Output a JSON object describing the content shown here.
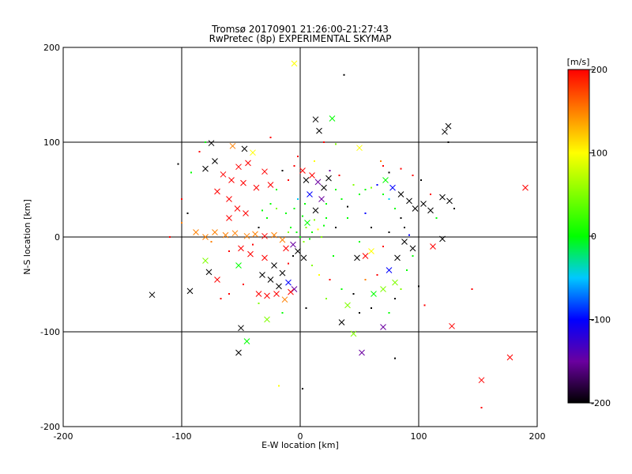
{
  "chart_data": {
    "type": "scatter",
    "title": "Tromsø 20170901 21:26:00-21:27:43",
    "subtitle": "RwPretec (8p) EXPERIMENTAL SKYMAP",
    "xlabel": "E-W location [km]",
    "ylabel": "N-S location [km]",
    "xlim": [
      -200,
      200
    ],
    "ylim": [
      -200,
      200
    ],
    "x_ticks": [
      "-200",
      "-100",
      "0",
      "100",
      "200"
    ],
    "y_ticks": [
      "-200",
      "-100",
      "0",
      "100",
      "200"
    ],
    "grid": true,
    "colorbar": {
      "label": "[m/s]",
      "min": -200,
      "max": 200,
      "ticks": [
        "200",
        "100",
        "0",
        "-100",
        "-200"
      ]
    },
    "markers": [
      "x",
      "dot"
    ],
    "points": [
      {
        "x": 37,
        "y": 171,
        "v": -200,
        "m": "dot"
      },
      {
        "x": -5,
        "y": 183,
        "v": 100,
        "m": "x"
      },
      {
        "x": 13,
        "y": 124,
        "v": -200,
        "m": "x"
      },
      {
        "x": 27,
        "y": 125,
        "v": 0,
        "m": "x"
      },
      {
        "x": 16,
        "y": 112,
        "v": -200,
        "m": "x"
      },
      {
        "x": 125,
        "y": 117,
        "v": -200,
        "m": "x"
      },
      {
        "x": 122,
        "y": 111,
        "v": -200,
        "m": "x"
      },
      {
        "x": -75,
        "y": 99,
        "v": -200,
        "m": "x"
      },
      {
        "x": -57,
        "y": 96,
        "v": 150,
        "m": "x"
      },
      {
        "x": -47,
        "y": 93,
        "v": -200,
        "m": "x"
      },
      {
        "x": -40,
        "y": 89,
        "v": 100,
        "m": "x"
      },
      {
        "x": 50,
        "y": 94,
        "v": 100,
        "m": "x"
      },
      {
        "x": 190,
        "y": 52,
        "v": 200,
        "m": "x"
      },
      {
        "x": -80,
        "y": 72,
        "v": -200,
        "m": "x"
      },
      {
        "x": -72,
        "y": 80,
        "v": -200,
        "m": "x"
      },
      {
        "x": -65,
        "y": 66,
        "v": 200,
        "m": "x"
      },
      {
        "x": -58,
        "y": 60,
        "v": 200,
        "m": "x"
      },
      {
        "x": -52,
        "y": 74,
        "v": 200,
        "m": "x"
      },
      {
        "x": -48,
        "y": 57,
        "v": 200,
        "m": "x"
      },
      {
        "x": -44,
        "y": 78,
        "v": 200,
        "m": "x"
      },
      {
        "x": -37,
        "y": 52,
        "v": 200,
        "m": "x"
      },
      {
        "x": -30,
        "y": 69,
        "v": 200,
        "m": "x"
      },
      {
        "x": -25,
        "y": 55,
        "v": 200,
        "m": "x"
      },
      {
        "x": -70,
        "y": 48,
        "v": 200,
        "m": "x"
      },
      {
        "x": -60,
        "y": 40,
        "v": 200,
        "m": "x"
      },
      {
        "x": -53,
        "y": 30,
        "v": 200,
        "m": "x"
      },
      {
        "x": -46,
        "y": 25,
        "v": 200,
        "m": "x"
      },
      {
        "x": -60,
        "y": 20,
        "v": 200,
        "m": "x"
      },
      {
        "x": -88,
        "y": 5,
        "v": 150,
        "m": "x"
      },
      {
        "x": -80,
        "y": 0,
        "v": 150,
        "m": "x"
      },
      {
        "x": -72,
        "y": 5,
        "v": 150,
        "m": "x"
      },
      {
        "x": -63,
        "y": 2,
        "v": 150,
        "m": "x"
      },
      {
        "x": -55,
        "y": 4,
        "v": 150,
        "m": "x"
      },
      {
        "x": -45,
        "y": 1,
        "v": 150,
        "m": "x"
      },
      {
        "x": -38,
        "y": 3,
        "v": 150,
        "m": "x"
      },
      {
        "x": -30,
        "y": 1,
        "v": 200,
        "m": "x"
      },
      {
        "x": -22,
        "y": 2,
        "v": 150,
        "m": "x"
      },
      {
        "x": -15,
        "y": -3,
        "v": 150,
        "m": "x"
      },
      {
        "x": -50,
        "y": -12,
        "v": 200,
        "m": "x"
      },
      {
        "x": -42,
        "y": -18,
        "v": 200,
        "m": "x"
      },
      {
        "x": -30,
        "y": -22,
        "v": 200,
        "m": "x"
      },
      {
        "x": -22,
        "y": -30,
        "v": -200,
        "m": "x"
      },
      {
        "x": -15,
        "y": -38,
        "v": -200,
        "m": "x"
      },
      {
        "x": -25,
        "y": -45,
        "v": -200,
        "m": "x"
      },
      {
        "x": -18,
        "y": -52,
        "v": -200,
        "m": "x"
      },
      {
        "x": -10,
        "y": -48,
        "v": -100,
        "m": "x"
      },
      {
        "x": -5,
        "y": -55,
        "v": -150,
        "m": "x"
      },
      {
        "x": -35,
        "y": -60,
        "v": 200,
        "m": "x"
      },
      {
        "x": -28,
        "y": -62,
        "v": 200,
        "m": "x"
      },
      {
        "x": -20,
        "y": -60,
        "v": 200,
        "m": "x"
      },
      {
        "x": -13,
        "y": -66,
        "v": 150,
        "m": "x"
      },
      {
        "x": -8,
        "y": -58,
        "v": 200,
        "m": "x"
      },
      {
        "x": -2,
        "y": -15,
        "v": -200,
        "m": "x"
      },
      {
        "x": 3,
        "y": -22,
        "v": -200,
        "m": "x"
      },
      {
        "x": -6,
        "y": -8,
        "v": -150,
        "m": "x"
      },
      {
        "x": -12,
        "y": -12,
        "v": 200,
        "m": "x"
      },
      {
        "x": 5,
        "y": 60,
        "v": -200,
        "m": "x"
      },
      {
        "x": 10,
        "y": 65,
        "v": 200,
        "m": "x"
      },
      {
        "x": 15,
        "y": 58,
        "v": -150,
        "m": "x"
      },
      {
        "x": 20,
        "y": 52,
        "v": -200,
        "m": "x"
      },
      {
        "x": 8,
        "y": 45,
        "v": -100,
        "m": "x"
      },
      {
        "x": 2,
        "y": 70,
        "v": 200,
        "m": "x"
      },
      {
        "x": 18,
        "y": 40,
        "v": -150,
        "m": "x"
      },
      {
        "x": 13,
        "y": 28,
        "v": -200,
        "m": "x"
      },
      {
        "x": 6,
        "y": 15,
        "v": 0,
        "m": "x"
      },
      {
        "x": 24,
        "y": 62,
        "v": -200,
        "m": "x"
      },
      {
        "x": 72,
        "y": 60,
        "v": 0,
        "m": "x"
      },
      {
        "x": 78,
        "y": 52,
        "v": -100,
        "m": "x"
      },
      {
        "x": 85,
        "y": 45,
        "v": -200,
        "m": "x"
      },
      {
        "x": 92,
        "y": 38,
        "v": -200,
        "m": "x"
      },
      {
        "x": 97,
        "y": 30,
        "v": -200,
        "m": "x"
      },
      {
        "x": 104,
        "y": 35,
        "v": -200,
        "m": "x"
      },
      {
        "x": 110,
        "y": 28,
        "v": -200,
        "m": "x"
      },
      {
        "x": 120,
        "y": 42,
        "v": -200,
        "m": "x"
      },
      {
        "x": 126,
        "y": 38,
        "v": -200,
        "m": "x"
      },
      {
        "x": 88,
        "y": -5,
        "v": -200,
        "m": "x"
      },
      {
        "x": 95,
        "y": -12,
        "v": -200,
        "m": "x"
      },
      {
        "x": 82,
        "y": -22,
        "v": -200,
        "m": "x"
      },
      {
        "x": 75,
        "y": -35,
        "v": -100,
        "m": "x"
      },
      {
        "x": 80,
        "y": -48,
        "v": 50,
        "m": "x"
      },
      {
        "x": 70,
        "y": -55,
        "v": 50,
        "m": "x"
      },
      {
        "x": 62,
        "y": -60,
        "v": 0,
        "m": "x"
      },
      {
        "x": 55,
        "y": -20,
        "v": 200,
        "m": "x"
      },
      {
        "x": 48,
        "y": -22,
        "v": -200,
        "m": "x"
      },
      {
        "x": 60,
        "y": -15,
        "v": 100,
        "m": "x"
      },
      {
        "x": 40,
        "y": -72,
        "v": 50,
        "m": "x"
      },
      {
        "x": 35,
        "y": -90,
        "v": -200,
        "m": "x"
      },
      {
        "x": 45,
        "y": -102,
        "v": 50,
        "m": "x"
      },
      {
        "x": 70,
        "y": -95,
        "v": -150,
        "m": "x"
      },
      {
        "x": 52,
        "y": -122,
        "v": -150,
        "m": "x"
      },
      {
        "x": 128,
        "y": -94,
        "v": 200,
        "m": "x"
      },
      {
        "x": 120,
        "y": -2,
        "v": -200,
        "m": "x"
      },
      {
        "x": 112,
        "y": -10,
        "v": 200,
        "m": "x"
      },
      {
        "x": -125,
        "y": -61,
        "v": -200,
        "m": "x"
      },
      {
        "x": -93,
        "y": -57,
        "v": -200,
        "m": "x"
      },
      {
        "x": -50,
        "y": -96,
        "v": -200,
        "m": "x"
      },
      {
        "x": -45,
        "y": -110,
        "v": 0,
        "m": "x"
      },
      {
        "x": -52,
        "y": -122,
        "v": -200,
        "m": "x"
      },
      {
        "x": -28,
        "y": -87,
        "v": 50,
        "m": "x"
      },
      {
        "x": -80,
        "y": -25,
        "v": 50,
        "m": "x"
      },
      {
        "x": -77,
        "y": -37,
        "v": -200,
        "m": "x"
      },
      {
        "x": -70,
        "y": -45,
        "v": 200,
        "m": "x"
      },
      {
        "x": -52,
        "y": -30,
        "v": 0,
        "m": "x"
      },
      {
        "x": -32,
        "y": -40,
        "v": -200,
        "m": "x"
      },
      {
        "x": 177,
        "y": -127,
        "v": 200,
        "m": "x"
      },
      {
        "x": 153,
        "y": -151,
        "v": 200,
        "m": "x"
      },
      {
        "x": 153,
        "y": -180,
        "v": 200,
        "m": "dot"
      },
      {
        "x": 2,
        "y": -160,
        "v": -200,
        "m": "dot"
      },
      {
        "x": -18,
        "y": -157,
        "v": 100,
        "m": "dot"
      },
      {
        "x": -100,
        "y": 40,
        "v": 200,
        "m": "dot"
      },
      {
        "x": -95,
        "y": 25,
        "v": -200,
        "m": "dot"
      },
      {
        "x": -92,
        "y": 68,
        "v": 0,
        "m": "dot"
      },
      {
        "x": -85,
        "y": 90,
        "v": 200,
        "m": "dot"
      },
      {
        "x": -67,
        "y": -65,
        "v": 200,
        "m": "dot"
      },
      {
        "x": -60,
        "y": -60,
        "v": 200,
        "m": "dot"
      },
      {
        "x": -48,
        "y": -50,
        "v": 200,
        "m": "dot"
      },
      {
        "x": -40,
        "y": -8,
        "v": 200,
        "m": "dot"
      },
      {
        "x": -35,
        "y": 10,
        "v": -200,
        "m": "dot"
      },
      {
        "x": -28,
        "y": 20,
        "v": 0,
        "m": "dot"
      },
      {
        "x": -20,
        "y": 30,
        "v": 50,
        "m": "dot"
      },
      {
        "x": -12,
        "y": 25,
        "v": 0,
        "m": "dot"
      },
      {
        "x": -8,
        "y": 10,
        "v": 0,
        "m": "dot"
      },
      {
        "x": -3,
        "y": 5,
        "v": 0,
        "m": "dot"
      },
      {
        "x": 0,
        "y": 0,
        "v": 0,
        "m": "dot"
      },
      {
        "x": 3,
        "y": -5,
        "v": 50,
        "m": "dot"
      },
      {
        "x": 5,
        "y": 10,
        "v": 50,
        "m": "dot"
      },
      {
        "x": 8,
        "y": -2,
        "v": 0,
        "m": "dot"
      },
      {
        "x": 10,
        "y": 5,
        "v": 0,
        "m": "dot"
      },
      {
        "x": 12,
        "y": 18,
        "v": 50,
        "m": "dot"
      },
      {
        "x": 15,
        "y": 8,
        "v": 100,
        "m": "dot"
      },
      {
        "x": 18,
        "y": 0,
        "v": 50,
        "m": "dot"
      },
      {
        "x": 20,
        "y": 12,
        "v": 0,
        "m": "dot"
      },
      {
        "x": 22,
        "y": 20,
        "v": 0,
        "m": "dot"
      },
      {
        "x": -5,
        "y": 30,
        "v": 0,
        "m": "dot"
      },
      {
        "x": -2,
        "y": 40,
        "v": -50,
        "m": "dot"
      },
      {
        "x": 4,
        "y": 35,
        "v": 0,
        "m": "dot"
      },
      {
        "x": 2,
        "y": 22,
        "v": 0,
        "m": "dot"
      },
      {
        "x": -10,
        "y": 5,
        "v": 50,
        "m": "dot"
      },
      {
        "x": -6,
        "y": -20,
        "v": -200,
        "m": "dot"
      },
      {
        "x": -10,
        "y": -28,
        "v": 200,
        "m": "dot"
      },
      {
        "x": 10,
        "y": -30,
        "v": 50,
        "m": "dot"
      },
      {
        "x": 16,
        "y": -40,
        "v": 100,
        "m": "dot"
      },
      {
        "x": 25,
        "y": -45,
        "v": 200,
        "m": "dot"
      },
      {
        "x": 28,
        "y": -20,
        "v": 0,
        "m": "dot"
      },
      {
        "x": 30,
        "y": 50,
        "v": 0,
        "m": "dot"
      },
      {
        "x": 35,
        "y": 40,
        "v": 0,
        "m": "dot"
      },
      {
        "x": 40,
        "y": 32,
        "v": -200,
        "m": "dot"
      },
      {
        "x": 45,
        "y": 55,
        "v": 50,
        "m": "dot"
      },
      {
        "x": 50,
        "y": 45,
        "v": 0,
        "m": "dot"
      },
      {
        "x": 55,
        "y": 50,
        "v": 0,
        "m": "dot"
      },
      {
        "x": 60,
        "y": 52,
        "v": 50,
        "m": "dot"
      },
      {
        "x": 65,
        "y": 55,
        "v": -100,
        "m": "dot"
      },
      {
        "x": 70,
        "y": 45,
        "v": 0,
        "m": "dot"
      },
      {
        "x": 75,
        "y": 40,
        "v": -50,
        "m": "dot"
      },
      {
        "x": 80,
        "y": 30,
        "v": 0,
        "m": "dot"
      },
      {
        "x": 85,
        "y": 20,
        "v": -200,
        "m": "dot"
      },
      {
        "x": 88,
        "y": 10,
        "v": -200,
        "m": "dot"
      },
      {
        "x": 92,
        "y": 2,
        "v": -100,
        "m": "dot"
      },
      {
        "x": 95,
        "y": -20,
        "v": 0,
        "m": "dot"
      },
      {
        "x": 90,
        "y": -35,
        "v": 0,
        "m": "dot"
      },
      {
        "x": 85,
        "y": -55,
        "v": 50,
        "m": "dot"
      },
      {
        "x": 80,
        "y": -65,
        "v": -200,
        "m": "dot"
      },
      {
        "x": 65,
        "y": -40,
        "v": 200,
        "m": "dot"
      },
      {
        "x": 55,
        "y": -45,
        "v": 150,
        "m": "dot"
      },
      {
        "x": 45,
        "y": -60,
        "v": -200,
        "m": "dot"
      },
      {
        "x": 50,
        "y": -80,
        "v": -200,
        "m": "dot"
      },
      {
        "x": 60,
        "y": -75,
        "v": -200,
        "m": "dot"
      },
      {
        "x": 75,
        "y": -80,
        "v": 0,
        "m": "dot"
      },
      {
        "x": 80,
        "y": -128,
        "v": -200,
        "m": "dot"
      },
      {
        "x": 105,
        "y": -72,
        "v": 200,
        "m": "dot"
      },
      {
        "x": 100,
        "y": -52,
        "v": -200,
        "m": "dot"
      },
      {
        "x": 110,
        "y": 45,
        "v": 200,
        "m": "dot"
      },
      {
        "x": 115,
        "y": 20,
        "v": 0,
        "m": "dot"
      },
      {
        "x": 130,
        "y": 30,
        "v": -200,
        "m": "dot"
      },
      {
        "x": 70,
        "y": 75,
        "v": 200,
        "m": "dot"
      },
      {
        "x": 75,
        "y": 68,
        "v": -200,
        "m": "dot"
      },
      {
        "x": 85,
        "y": 72,
        "v": 200,
        "m": "dot"
      },
      {
        "x": 95,
        "y": 65,
        "v": 200,
        "m": "dot"
      },
      {
        "x": 102,
        "y": 60,
        "v": -200,
        "m": "dot"
      },
      {
        "x": 20,
        "y": 100,
        "v": 200,
        "m": "dot"
      },
      {
        "x": 30,
        "y": 98,
        "v": 50,
        "m": "dot"
      },
      {
        "x": -25,
        "y": 105,
        "v": 200,
        "m": "dot"
      },
      {
        "x": -80,
        "y": 100,
        "v": 0,
        "m": "dot"
      },
      {
        "x": 68,
        "y": 80,
        "v": 150,
        "m": "dot"
      },
      {
        "x": -60,
        "y": -15,
        "v": 200,
        "m": "dot"
      },
      {
        "x": -75,
        "y": -5,
        "v": 150,
        "m": "dot"
      },
      {
        "x": -100,
        "y": 15,
        "v": 150,
        "m": "dot"
      },
      {
        "x": -110,
        "y": 0,
        "v": 200,
        "m": "dot"
      },
      {
        "x": -35,
        "y": -70,
        "v": 50,
        "m": "dot"
      },
      {
        "x": -15,
        "y": -80,
        "v": 0,
        "m": "dot"
      },
      {
        "x": 5,
        "y": -75,
        "v": -200,
        "m": "dot"
      },
      {
        "x": 22,
        "y": -65,
        "v": 50,
        "m": "dot"
      },
      {
        "x": 35,
        "y": -55,
        "v": 0,
        "m": "dot"
      },
      {
        "x": 30,
        "y": 10,
        "v": -200,
        "m": "dot"
      },
      {
        "x": 40,
        "y": 20,
        "v": 0,
        "m": "dot"
      },
      {
        "x": 55,
        "y": 25,
        "v": -100,
        "m": "dot"
      },
      {
        "x": 60,
        "y": 10,
        "v": -200,
        "m": "dot"
      },
      {
        "x": 75,
        "y": 5,
        "v": -200,
        "m": "dot"
      },
      {
        "x": 70,
        "y": -10,
        "v": 200,
        "m": "dot"
      },
      {
        "x": 50,
        "y": -5,
        "v": 0,
        "m": "dot"
      },
      {
        "x": -20,
        "y": 50,
        "v": 0,
        "m": "dot"
      },
      {
        "x": -10,
        "y": 60,
        "v": 200,
        "m": "dot"
      },
      {
        "x": -15,
        "y": 70,
        "v": -200,
        "m": "dot"
      },
      {
        "x": -5,
        "y": 75,
        "v": 200,
        "m": "dot"
      },
      {
        "x": 25,
        "y": 70,
        "v": -150,
        "m": "dot"
      },
      {
        "x": 33,
        "y": 65,
        "v": 200,
        "m": "dot"
      },
      {
        "x": 12,
        "y": 80,
        "v": 100,
        "m": "dot"
      },
      {
        "x": -2,
        "y": 85,
        "v": 200,
        "m": "dot"
      },
      {
        "x": 22,
        "y": 35,
        "v": 0,
        "m": "dot"
      },
      {
        "x": -25,
        "y": 35,
        "v": 0,
        "m": "dot"
      },
      {
        "x": -32,
        "y": 28,
        "v": 0,
        "m": "dot"
      },
      {
        "x": 125,
        "y": 100,
        "v": -200,
        "m": "dot"
      },
      {
        "x": -103,
        "y": 77,
        "v": -200,
        "m": "dot"
      },
      {
        "x": 145,
        "y": -55,
        "v": 200,
        "m": "dot"
      }
    ]
  }
}
